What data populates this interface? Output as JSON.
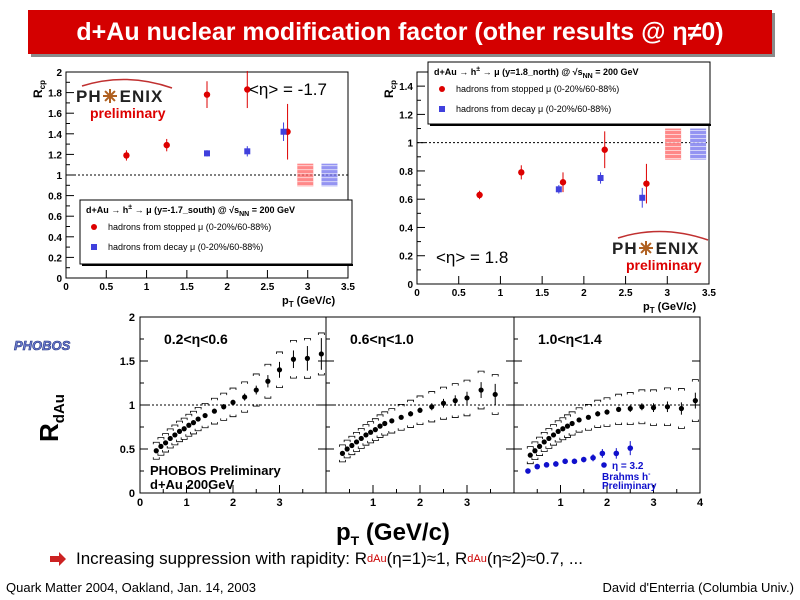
{
  "slide": {
    "title": "d+Au nuclear modification factor (other results @ η≠0)",
    "bullet_text_1": "Increasing suppression with rapidity: R",
    "bullet_sub_1": "dAu",
    "bullet_text_2": "(η=1)≈1, R",
    "bullet_sub_2": "dAu",
    "bullet_text_3": "(η≈2)≈0.7, ...",
    "footer_left": "Quark Matter 2004, Oakland, Jan. 14, 2003",
    "footer_right": "David d'Enterria (Columbia Univ.)"
  },
  "chart_data": [
    {
      "type": "scatter",
      "id": "phenix-south",
      "ylabel": "R",
      "ylabel_sub": "cp",
      "xlabel": "p",
      "xlabel_sub": "T",
      "xlabel_unit": " (GeV/c)",
      "xlim": [
        0,
        3.5
      ],
      "ylim": [
        0,
        2
      ],
      "xticks": [
        "0",
        "0.5",
        "1",
        "1.5",
        "2",
        "2.5",
        "3",
        "3.5"
      ],
      "xtick_values": [
        0,
        0.5,
        1,
        1.5,
        2,
        2.5,
        3,
        3.5
      ],
      "yticks": [
        "0",
        "0.2",
        "0.4",
        "0.6",
        "0.8",
        "1",
        "1.2",
        "1.4",
        "1.6",
        "1.8",
        "2"
      ],
      "ytick_values": [
        0,
        0.2,
        0.4,
        0.6,
        0.8,
        1,
        1.2,
        1.4,
        1.6,
        1.8,
        2
      ],
      "logo_left": "PH",
      "logo_right": "ENIX",
      "logo_sub": "preliminary",
      "annotation": "<η> = -1.7",
      "legend_header": "d+Au → h",
      "legend_header_sup": "±",
      "legend_header_2": " → μ (y=-1.7_south) @ √s",
      "legend_header_sub": "NN",
      "legend_header_3": " = 200 GeV",
      "series": [
        {
          "name": "hadrons from stopped μ (0-20%/60-88%)",
          "marker": "circle",
          "color": "#dd0000",
          "x": [
            0.75,
            1.25,
            1.75,
            2.25,
            2.75
          ],
          "y": [
            1.19,
            1.29,
            1.78,
            1.83,
            1.42
          ],
          "err": [
            0.05,
            0.06,
            0.13,
            0.18,
            0.27
          ]
        },
        {
          "name": "hadrons from decay μ (0-20%/60-88%)",
          "marker": "square",
          "color": "#4040dd",
          "x": [
            1.75,
            2.25,
            2.7
          ],
          "y": [
            1.21,
            1.23,
            1.42
          ],
          "err": [
            0.03,
            0.05,
            0.09
          ]
        }
      ],
      "syst_bands": [
        {
          "x": 2.97,
          "center": 1.0,
          "half": 0.11,
          "color": "#ff6060"
        },
        {
          "x": 3.27,
          "center": 1.0,
          "half": 0.11,
          "color": "#7070ee"
        }
      ]
    },
    {
      "type": "scatter",
      "id": "phenix-north",
      "ylabel": "R",
      "ylabel_sub": "cp",
      "xlabel": "p",
      "xlabel_sub": "T",
      "xlabel_unit": " (GeV/c)",
      "xlim": [
        0,
        3.5
      ],
      "ylim": [
        0,
        1.5
      ],
      "xticks": [
        "0",
        "0.5",
        "1",
        "1.5",
        "2",
        "2.5",
        "3",
        "3.5"
      ],
      "xtick_values": [
        0,
        0.5,
        1,
        1.5,
        2,
        2.5,
        3,
        3.5
      ],
      "yticks": [
        "0",
        "0.2",
        "0.4",
        "0.6",
        "0.8",
        "1",
        "1.2",
        "1.4"
      ],
      "ytick_values": [
        0,
        0.2,
        0.4,
        0.6,
        0.8,
        1,
        1.2,
        1.4
      ],
      "logo_left": "PH",
      "logo_right": "ENIX",
      "logo_sub": "preliminary",
      "annotation": "<η> = 1.8",
      "legend_header": "d+Au → h",
      "legend_header_sup": "±",
      "legend_header_2": " → μ (y=1.8_north) @ √s",
      "legend_header_sub": "NN",
      "legend_header_3": " = 200 GeV",
      "series": [
        {
          "name": "hadrons from stopped μ (0-20%/60-88%)",
          "marker": "circle",
          "color": "#dd0000",
          "x": [
            0.75,
            1.25,
            1.75,
            2.25,
            2.75
          ],
          "y": [
            0.63,
            0.79,
            0.72,
            0.95,
            0.71
          ],
          "err": [
            0.03,
            0.05,
            0.07,
            0.13,
            0.14
          ]
        },
        {
          "name": "hadrons from decay μ (0-20%/60-88%)",
          "marker": "square",
          "color": "#4040dd",
          "x": [
            1.7,
            2.2,
            2.7
          ],
          "y": [
            0.67,
            0.75,
            0.61
          ],
          "err": [
            0.03,
            0.04,
            0.07
          ]
        }
      ],
      "syst_bands": [
        {
          "x": 3.07,
          "center": 0.99,
          "half": 0.11,
          "color": "#ff6060"
        },
        {
          "x": 3.37,
          "center": 0.99,
          "half": 0.11,
          "color": "#7070ee"
        }
      ]
    },
    {
      "type": "scatter",
      "id": "phobos",
      "ylabel": "R",
      "ylabel_sub": "dAu",
      "xlabel": "p",
      "xlabel_sub": "T",
      "xlabel_unit": " (GeV/c)",
      "logo": "PHOBOS",
      "ylim": [
        0,
        2
      ],
      "yticks": [
        "0",
        "0.5",
        "1",
        "1.5",
        "2"
      ],
      "ytick_values": [
        0,
        0.5,
        1,
        1.5,
        2
      ],
      "preliminary": "PHOBOS Preliminary",
      "system": "d+Au 200GeV",
      "panels": [
        {
          "label": "0.2<η<0.6",
          "xlim": [
            0,
            4
          ],
          "xticks": [
            "0",
            "1",
            "2",
            "3"
          ],
          "xtick_values": [
            0,
            1,
            2,
            3
          ],
          "x": [
            0.35,
            0.45,
            0.55,
            0.65,
            0.75,
            0.85,
            0.95,
            1.05,
            1.15,
            1.25,
            1.4,
            1.6,
            1.8,
            2.0,
            2.25,
            2.5,
            2.75,
            3.0,
            3.3,
            3.6,
            3.9
          ],
          "y": [
            0.48,
            0.53,
            0.57,
            0.62,
            0.66,
            0.7,
            0.73,
            0.77,
            0.8,
            0.84,
            0.88,
            0.93,
            0.98,
            1.03,
            1.09,
            1.17,
            1.27,
            1.4,
            1.52,
            1.53,
            1.58
          ],
          "err": [
            0.02,
            0.02,
            0.02,
            0.02,
            0.02,
            0.02,
            0.02,
            0.02,
            0.02,
            0.02,
            0.02,
            0.02,
            0.03,
            0.03,
            0.04,
            0.05,
            0.07,
            0.09,
            0.1,
            0.14,
            0.18
          ]
        },
        {
          "label": "0.6<η<1.0",
          "xlim": [
            0,
            4
          ],
          "xticks": [
            "1",
            "2",
            "3"
          ],
          "xtick_values": [
            1,
            2,
            3
          ],
          "x": [
            0.35,
            0.45,
            0.55,
            0.65,
            0.75,
            0.85,
            0.95,
            1.05,
            1.15,
            1.25,
            1.4,
            1.6,
            1.8,
            2.0,
            2.25,
            2.5,
            2.75,
            3.0,
            3.3,
            3.6
          ],
          "y": [
            0.45,
            0.5,
            0.54,
            0.58,
            0.62,
            0.66,
            0.69,
            0.72,
            0.76,
            0.79,
            0.82,
            0.86,
            0.9,
            0.94,
            0.98,
            1.02,
            1.05,
            1.08,
            1.17,
            1.12
          ],
          "err": [
            0.02,
            0.02,
            0.02,
            0.02,
            0.02,
            0.02,
            0.02,
            0.02,
            0.02,
            0.02,
            0.02,
            0.02,
            0.03,
            0.03,
            0.04,
            0.05,
            0.06,
            0.07,
            0.09,
            0.12
          ]
        },
        {
          "label": "1.0<η<1.4",
          "xlim": [
            0,
            4
          ],
          "xticks": [
            "1",
            "2",
            "3",
            "4"
          ],
          "xtick_values": [
            1,
            2,
            3,
            4
          ],
          "x": [
            0.35,
            0.45,
            0.55,
            0.65,
            0.75,
            0.85,
            0.95,
            1.05,
            1.15,
            1.25,
            1.4,
            1.6,
            1.8,
            2.0,
            2.25,
            2.5,
            2.75,
            3.0,
            3.3,
            3.6,
            3.9
          ],
          "y": [
            0.43,
            0.48,
            0.53,
            0.58,
            0.62,
            0.66,
            0.7,
            0.73,
            0.76,
            0.79,
            0.83,
            0.86,
            0.9,
            0.92,
            0.95,
            0.96,
            0.98,
            0.97,
            0.98,
            0.96,
            1.05
          ],
          "err": [
            0.02,
            0.02,
            0.02,
            0.02,
            0.02,
            0.02,
            0.02,
            0.02,
            0.02,
            0.02,
            0.02,
            0.02,
            0.03,
            0.03,
            0.03,
            0.04,
            0.04,
            0.05,
            0.06,
            0.07,
            0.09
          ],
          "brahms": {
            "label": "η = 3.2",
            "name": "Brahms h",
            "name_sup": "-",
            "prelim": "Preliminary",
            "x": [
              0.3,
              0.5,
              0.7,
              0.9,
              1.1,
              1.3,
              1.5,
              1.7,
              1.9,
              2.2,
              2.5
            ],
            "y": [
              0.25,
              0.3,
              0.32,
              0.33,
              0.36,
              0.36,
              0.38,
              0.4,
              0.45,
              0.45,
              0.51
            ],
            "err": [
              0.03,
              0.03,
              0.03,
              0.03,
              0.03,
              0.03,
              0.03,
              0.04,
              0.05,
              0.06,
              0.08
            ]
          }
        }
      ]
    }
  ]
}
